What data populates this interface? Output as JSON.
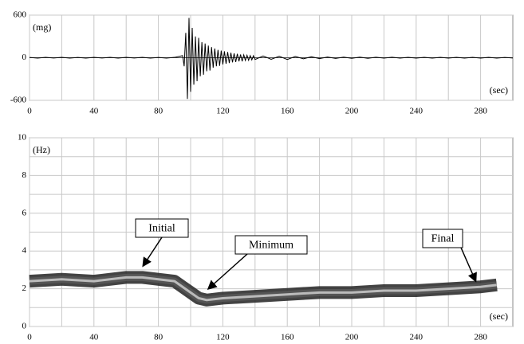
{
  "chart_data": [
    {
      "type": "line",
      "y_label": "(mg)",
      "x_label": "(sec)",
      "x": [
        0,
        5,
        10,
        15,
        20,
        25,
        30,
        35,
        40,
        45,
        50,
        55,
        60,
        65,
        70,
        75,
        80,
        85,
        90,
        95,
        96,
        97,
        98,
        99,
        100,
        101,
        102,
        103,
        104,
        105,
        106,
        107,
        108,
        109,
        110,
        111,
        112,
        113,
        114,
        115,
        116,
        117,
        118,
        119,
        120,
        121,
        122,
        123,
        124,
        125,
        126,
        127,
        128,
        129,
        130,
        131,
        132,
        133,
        134,
        135,
        136,
        137,
        138,
        139,
        140,
        145,
        150,
        155,
        160,
        165,
        170,
        175,
        180,
        185,
        190,
        195,
        200,
        205,
        210,
        215,
        220,
        225,
        230,
        235,
        240,
        245,
        250,
        255,
        260,
        265,
        270,
        275,
        280,
        285,
        290,
        295,
        300
      ],
      "series": [
        {
          "color": "#000000",
          "values": [
            4,
            -5,
            5,
            -4,
            6,
            -5,
            4,
            -6,
            5,
            -4,
            5,
            -5,
            6,
            -4,
            5,
            -5,
            4,
            -6,
            5,
            30,
            -120,
            350,
            -580,
            560,
            -480,
            420,
            -380,
            300,
            -330,
            280,
            -260,
            220,
            -240,
            200,
            -190,
            170,
            -180,
            150,
            -140,
            130,
            -120,
            110,
            -115,
            100,
            -95,
            90,
            -85,
            80,
            -75,
            70,
            -65,
            60,
            -60,
            55,
            -50,
            45,
            -50,
            40,
            -38,
            35,
            -35,
            30,
            -30,
            28,
            -25,
            25,
            -22,
            20,
            -25,
            18,
            -15,
            14,
            -12,
            10,
            -10,
            9,
            -8,
            8,
            -8,
            7,
            -6,
            7,
            -6,
            6,
            -6,
            5,
            -5,
            6,
            -5,
            5,
            -6,
            5,
            -5,
            6,
            -5,
            4,
            -4
          ]
        }
      ],
      "xlim": [
        0,
        300
      ],
      "xticks": [
        0,
        40,
        80,
        120,
        160,
        200,
        240,
        280
      ],
      "ylim": [
        -600,
        600
      ],
      "yticks": [
        -600,
        0,
        600
      ],
      "grid": true
    },
    {
      "type": "ridge",
      "y_label": "(Hz)",
      "x_label": "(sec)",
      "x": [
        0,
        20,
        40,
        60,
        70,
        80,
        90,
        95,
        100,
        105,
        110,
        120,
        140,
        160,
        180,
        200,
        220,
        240,
        260,
        280,
        290
      ],
      "series": [
        {
          "color": "#555555",
          "values": [
            2.4,
            2.5,
            2.4,
            2.6,
            2.6,
            2.5,
            2.4,
            2.1,
            1.8,
            1.5,
            1.4,
            1.5,
            1.6,
            1.7,
            1.8,
            1.8,
            1.9,
            1.9,
            2.0,
            2.1,
            2.2
          ]
        }
      ],
      "annotations": [
        "Initial",
        "Minimum",
        "Final"
      ],
      "xlim": [
        0,
        300
      ],
      "xticks": [
        0,
        40,
        80,
        120,
        160,
        200,
        240,
        280
      ],
      "ylim": [
        0,
        10
      ],
      "yticks": [
        0,
        2,
        4,
        6,
        8,
        10
      ],
      "grid": true
    }
  ]
}
